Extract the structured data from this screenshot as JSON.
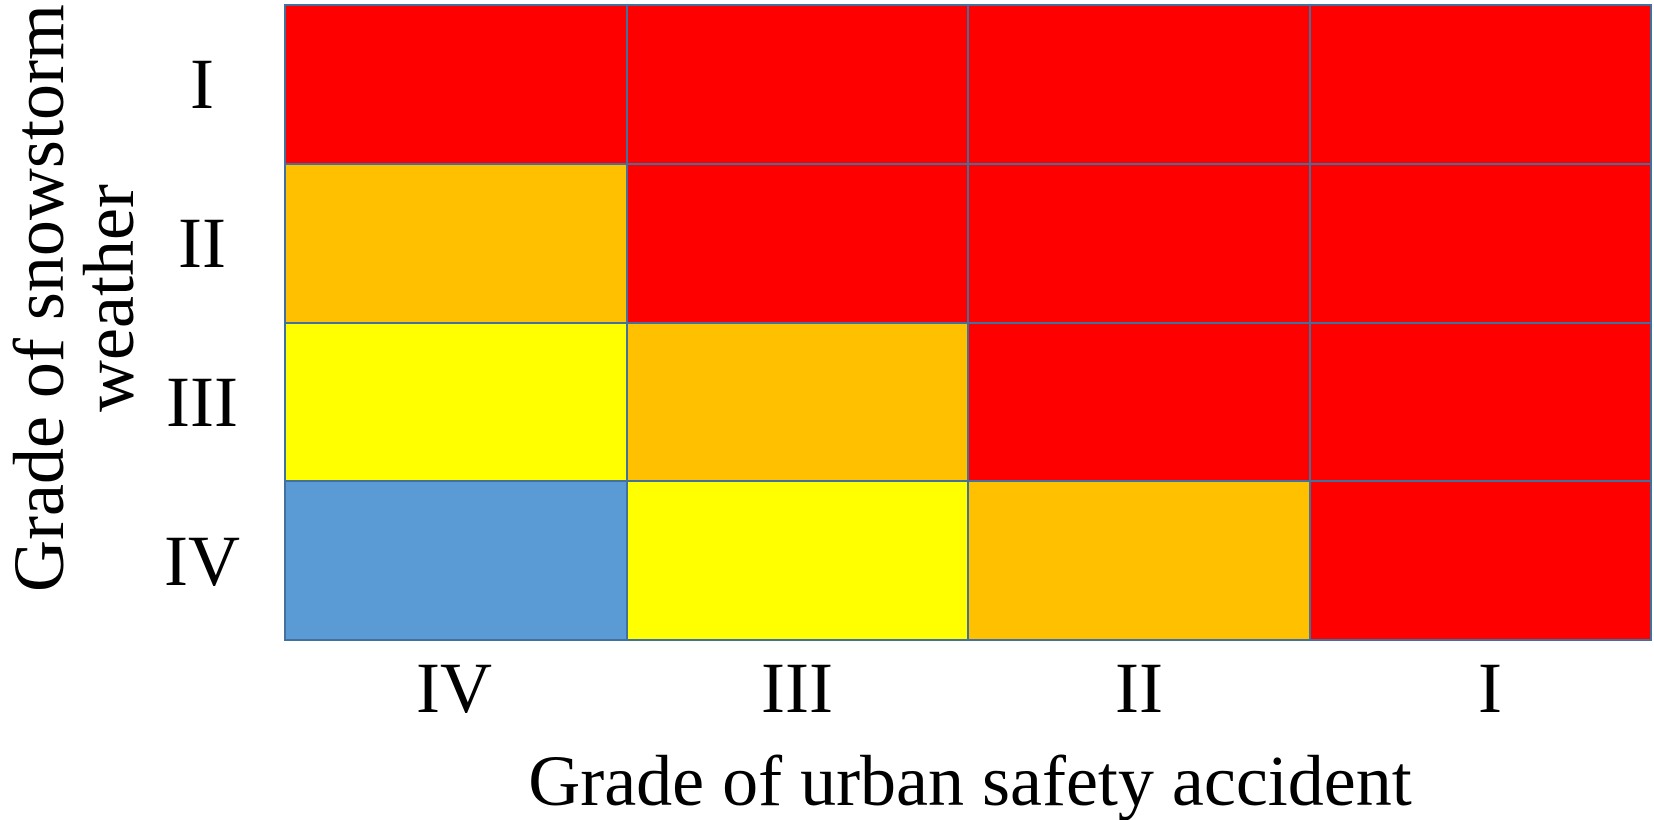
{
  "chart_data": {
    "type": "heatmap",
    "title": "",
    "xlabel": "Grade of urban safety accident",
    "ylabel": "Grade of snowstorm weather",
    "ylabel_lines": [
      "Grade of snowstorm",
      "weather"
    ],
    "x_categories": [
      "IV",
      "III",
      "II",
      "I"
    ],
    "y_categories": [
      "I",
      "II",
      "III",
      "IV"
    ],
    "matrix_rows_top_to_bottom": [
      [
        "red",
        "red",
        "red",
        "red"
      ],
      [
        "orange",
        "red",
        "red",
        "red"
      ],
      [
        "yellow",
        "orange",
        "red",
        "red"
      ],
      [
        "blue",
        "yellow",
        "orange",
        "red"
      ]
    ],
    "colors": {
      "red": "#FF0000",
      "orange": "#FFC000",
      "yellow": "#FFFF00",
      "blue": "#5B9BD5",
      "border": "#41719C",
      "text": "#000000",
      "background": "#FFFFFF"
    },
    "legend": "none",
    "grid_on": true
  }
}
